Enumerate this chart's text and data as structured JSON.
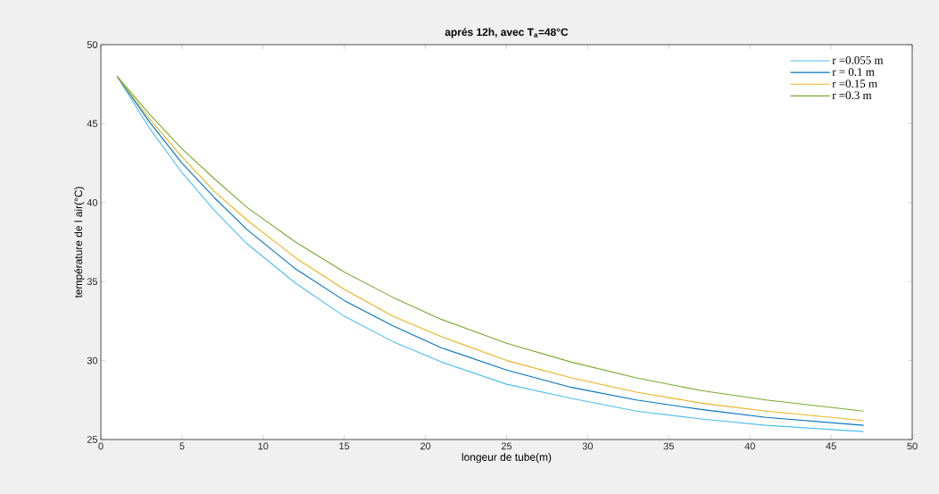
{
  "chart_data": {
    "type": "line",
    "title": "aprés 12h, avec T$_{a}$=48°C",
    "xlabel": "longeur de tube(m)",
    "ylabel": "température de l air(°C)",
    "x": [
      1,
      3,
      5,
      7,
      9,
      12,
      15,
      18,
      21,
      25,
      29,
      33,
      37,
      41,
      47
    ],
    "series": [
      {
        "name": "r =0.055 m",
        "color": "#4dbeee",
        "values": [
          48,
          44.7,
          41.9,
          39.5,
          37.4,
          34.9,
          32.8,
          31.2,
          29.9,
          28.5,
          27.6,
          26.8,
          26.3,
          25.9,
          25.5
        ]
      },
      {
        "name": "r = 0.1 m",
        "color": "#0072bd",
        "values": [
          48,
          45.1,
          42.5,
          40.3,
          38.3,
          35.8,
          33.8,
          32.2,
          30.8,
          29.4,
          28.3,
          27.5,
          26.9,
          26.4,
          25.9
        ]
      },
      {
        "name": "r =0.15 m",
        "color": "#edb120",
        "values": [
          48,
          45.3,
          42.9,
          40.7,
          38.9,
          36.5,
          34.5,
          32.8,
          31.5,
          30.0,
          28.9,
          28.0,
          27.3,
          26.8,
          26.2
        ]
      },
      {
        "name": "r =0.3 m",
        "color": "#77ac30",
        "values": [
          48,
          45.6,
          43.4,
          41.5,
          39.7,
          37.5,
          35.6,
          34.0,
          32.6,
          31.1,
          29.9,
          28.9,
          28.1,
          27.5,
          26.8
        ]
      }
    ],
    "xlim": [
      0,
      50
    ],
    "ylim": [
      25,
      50
    ],
    "xticks": [
      0,
      5,
      10,
      15,
      20,
      25,
      30,
      35,
      40,
      45,
      50
    ],
    "yticks": [
      25,
      30,
      35,
      40,
      45,
      50
    ],
    "legend": "top right",
    "grid": false,
    "line_style": "solid"
  }
}
